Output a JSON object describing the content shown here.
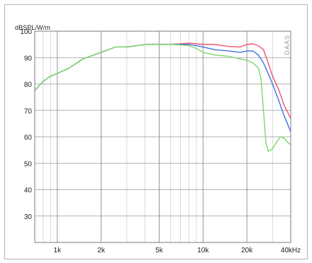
{
  "chart_data": {
    "type": "line",
    "title": "",
    "xlabel": "",
    "ylabel": "dBSPL/W/m",
    "x_scale": "log",
    "xlim": [
      700,
      40000
    ],
    "ylim": [
      20,
      100
    ],
    "grid": true,
    "legend": "none",
    "watermark": "DAAS",
    "x_ticks": [
      {
        "value": 1000,
        "label": "1k"
      },
      {
        "value": 2000,
        "label": "2k"
      },
      {
        "value": 5000,
        "label": "5k"
      },
      {
        "value": 10000,
        "label": "10k"
      },
      {
        "value": 20000,
        "label": "20k"
      },
      {
        "value": 40000,
        "label": "40kHz"
      }
    ],
    "y_ticks": [
      100,
      90,
      80,
      70,
      60,
      50,
      40,
      30
    ],
    "series": [
      {
        "color": "#f0506e",
        "points": [
          [
            700,
            77.5
          ],
          [
            800,
            81
          ],
          [
            900,
            83
          ],
          [
            1000,
            84
          ],
          [
            1200,
            86
          ],
          [
            1500,
            89.5
          ],
          [
            2000,
            92
          ],
          [
            2500,
            94
          ],
          [
            3000,
            94
          ],
          [
            3500,
            94.5
          ],
          [
            4000,
            95
          ],
          [
            4500,
            95
          ],
          [
            5000,
            95
          ],
          [
            6000,
            95
          ],
          [
            7000,
            95.2
          ],
          [
            8000,
            95.5
          ],
          [
            9000,
            95.2
          ],
          [
            10000,
            95
          ],
          [
            12000,
            95
          ],
          [
            15000,
            94.2
          ],
          [
            18000,
            94
          ],
          [
            20000,
            95
          ],
          [
            22000,
            95.2
          ],
          [
            24000,
            94.5
          ],
          [
            26000,
            93
          ],
          [
            28000,
            88
          ],
          [
            30000,
            83
          ],
          [
            33000,
            78
          ],
          [
            36000,
            72
          ],
          [
            40000,
            67
          ]
        ]
      },
      {
        "color": "#3f74e0",
        "points": [
          [
            700,
            77.5
          ],
          [
            800,
            81
          ],
          [
            900,
            83
          ],
          [
            1000,
            84
          ],
          [
            1200,
            86
          ],
          [
            1500,
            89.5
          ],
          [
            2000,
            92
          ],
          [
            2500,
            94
          ],
          [
            3000,
            94
          ],
          [
            3500,
            94.5
          ],
          [
            4000,
            95
          ],
          [
            4500,
            95
          ],
          [
            5000,
            95
          ],
          [
            6000,
            95
          ],
          [
            7000,
            95
          ],
          [
            8000,
            95
          ],
          [
            9000,
            94.5
          ],
          [
            10000,
            94
          ],
          [
            12000,
            93
          ],
          [
            15000,
            92.5
          ],
          [
            18000,
            92
          ],
          [
            20000,
            92.5
          ],
          [
            22000,
            92.5
          ],
          [
            24000,
            91
          ],
          [
            26000,
            88
          ],
          [
            28000,
            84
          ],
          [
            30000,
            80
          ],
          [
            33000,
            74
          ],
          [
            36000,
            68
          ],
          [
            40000,
            62
          ]
        ]
      },
      {
        "color": "#7dd86a",
        "points": [
          [
            700,
            77.5
          ],
          [
            800,
            81
          ],
          [
            900,
            83
          ],
          [
            1000,
            84
          ],
          [
            1200,
            86
          ],
          [
            1500,
            89.5
          ],
          [
            2000,
            92
          ],
          [
            2500,
            94
          ],
          [
            3000,
            94
          ],
          [
            3500,
            94.5
          ],
          [
            4000,
            95
          ],
          [
            4500,
            95
          ],
          [
            5000,
            95
          ],
          [
            6000,
            95
          ],
          [
            7000,
            94.8
          ],
          [
            8000,
            94.5
          ],
          [
            9000,
            93.5
          ],
          [
            10000,
            92
          ],
          [
            12000,
            91
          ],
          [
            15000,
            90.5
          ],
          [
            18000,
            89.5
          ],
          [
            20000,
            89
          ],
          [
            22000,
            88
          ],
          [
            24000,
            86
          ],
          [
            25000,
            82
          ],
          [
            26000,
            70
          ],
          [
            27000,
            58
          ],
          [
            28000,
            54.5
          ],
          [
            30000,
            55.5
          ],
          [
            32000,
            58
          ],
          [
            34000,
            60
          ],
          [
            36000,
            59.5
          ],
          [
            38000,
            58
          ],
          [
            40000,
            57
          ]
        ]
      }
    ]
  }
}
